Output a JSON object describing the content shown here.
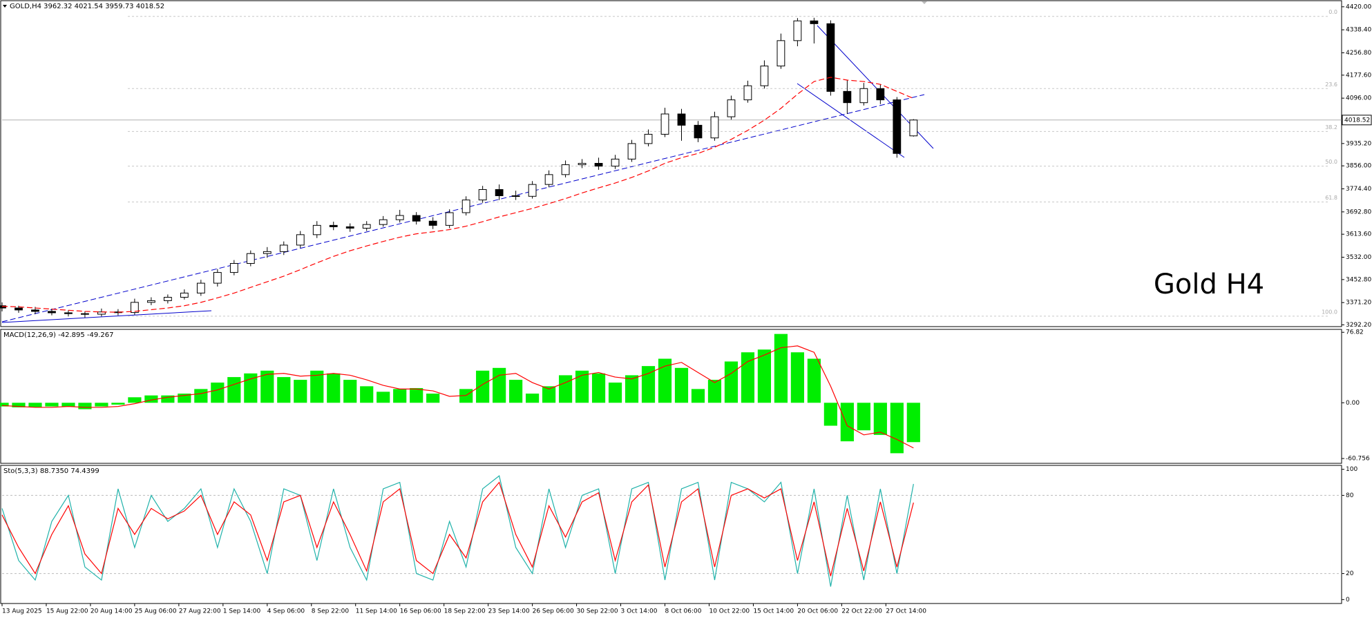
{
  "chart_data": [
    {
      "type": "candlestick",
      "title": "GOLD,H4  3962.32 4021.54 3959.73 4018.52",
      "annotation": "Gold H4",
      "x": [
        0,
        6,
        12,
        18,
        24,
        30,
        36,
        42,
        48,
        54,
        60,
        66,
        72,
        78,
        84,
        90,
        96,
        102,
        108,
        114,
        120,
        126,
        132,
        138,
        144,
        150,
        156,
        162,
        168,
        174,
        180,
        186,
        192,
        198,
        204,
        210,
        216,
        222,
        228,
        234,
        240,
        246,
        252,
        258,
        264,
        270,
        276,
        282,
        288,
        294,
        300,
        306,
        312,
        318,
        324,
        330
      ],
      "candles": {
        "open": [
          3360,
          3352,
          3345,
          3340,
          3335,
          3332,
          3330,
          3338,
          3336,
          3372,
          3378,
          3390,
          3405,
          3440,
          3478,
          3510,
          3545,
          3552,
          3575,
          3612,
          3645,
          3640,
          3635,
          3648,
          3665,
          3680,
          3660,
          3645,
          3690,
          3735,
          3772,
          3750,
          3748,
          3790,
          3825,
          3860,
          3865,
          3855,
          3880,
          3935,
          3968,
          4040,
          4000,
          3955,
          4030,
          4090,
          4140,
          4210,
          4300,
          4370,
          4360,
          4120,
          4080,
          4130,
          4090,
          3962.32
        ],
        "high": [
          3372,
          3360,
          3356,
          3350,
          3344,
          3340,
          3350,
          3348,
          3385,
          3390,
          3400,
          3418,
          3452,
          3490,
          3522,
          3556,
          3568,
          3588,
          3625,
          3660,
          3658,
          3652,
          3660,
          3678,
          3700,
          3692,
          3674,
          3702,
          3748,
          3785,
          3790,
          3768,
          3802,
          3840,
          3875,
          3880,
          3885,
          3895,
          3948,
          3985,
          4062,
          4058,
          4015,
          4048,
          4105,
          4158,
          4230,
          4325,
          4380,
          4381,
          4372,
          4160,
          4150,
          4145,
          4100,
          4021.54
        ],
        "low": [
          3340,
          3335,
          3330,
          3326,
          3322,
          3318,
          3322,
          3326,
          3328,
          3362,
          3368,
          3382,
          3395,
          3428,
          3468,
          3500,
          3530,
          3540,
          3565,
          3600,
          3628,
          3622,
          3625,
          3640,
          3655,
          3648,
          3632,
          3635,
          3680,
          3725,
          3735,
          3735,
          3740,
          3780,
          3815,
          3848,
          3842,
          3845,
          3870,
          3925,
          3958,
          3945,
          3940,
          3945,
          4020,
          4080,
          4130,
          4200,
          4280,
          4290,
          4105,
          4040,
          4070,
          4075,
          3885,
          3959.73
        ],
        "close": [
          3352,
          3345,
          3340,
          3335,
          3332,
          3330,
          3338,
          3336,
          3372,
          3378,
          3390,
          3405,
          3440,
          3478,
          3510,
          3545,
          3552,
          3575,
          3612,
          3645,
          3640,
          3635,
          3648,
          3665,
          3680,
          3660,
          3645,
          3690,
          3735,
          3772,
          3750,
          3748,
          3790,
          3825,
          3860,
          3865,
          3855,
          3880,
          3935,
          3968,
          4040,
          4000,
          3955,
          4030,
          4090,
          4140,
          4210,
          4300,
          4370,
          4360,
          4120,
          4080,
          4130,
          4090,
          3900,
          4018.52
        ]
      },
      "up_color": "#ffffff",
      "down_color": "#000000",
      "ma": {
        "color": "#ff0000",
        "values": [
          3358,
          3356,
          3352,
          3348,
          3344,
          3340,
          3338,
          3337,
          3340,
          3346,
          3352,
          3360,
          3372,
          3388,
          3405,
          3425,
          3445,
          3465,
          3488,
          3512,
          3535,
          3555,
          3572,
          3588,
          3603,
          3615,
          3622,
          3630,
          3642,
          3658,
          3675,
          3690,
          3705,
          3722,
          3740,
          3760,
          3778,
          3795,
          3815,
          3838,
          3865,
          3885,
          3900,
          3922,
          3950,
          3982,
          4018,
          4060,
          4110,
          4155,
          4170,
          4160,
          4155,
          4145,
          4120,
          4095
        ]
      },
      "xlim": [
        0,
        485
      ],
      "ylim": [
        3286,
        4441.6
      ],
      "yticks": [
        {
          "value": 4420,
          "label": "4420.00"
        },
        {
          "value": 4338.4,
          "label": "4338.40"
        },
        {
          "value": 4256.8,
          "label": "4256.80"
        },
        {
          "value": 4177.6,
          "label": "4177.60"
        },
        {
          "value": 4096,
          "label": "4096.00"
        },
        {
          "value": 3935.2,
          "label": "3935.20"
        },
        {
          "value": 3856,
          "label": "3856.00"
        },
        {
          "value": 3774.4,
          "label": "3774.40"
        },
        {
          "value": 3692.8,
          "label": "3692.80"
        },
        {
          "value": 3613.6,
          "label": "3613.60"
        },
        {
          "value": 3532,
          "label": "3532.00"
        },
        {
          "value": 3452.8,
          "label": "3452.80"
        },
        {
          "value": 3371.2,
          "label": "3371.20"
        },
        {
          "value": 3292.2,
          "label": "3292.20"
        }
      ],
      "last_price": {
        "value": 4018.52,
        "label": "4018.52"
      },
      "fib_levels": [
        {
          "value": 4386,
          "label": "0.0"
        },
        {
          "value": 4130,
          "label": "23.6"
        },
        {
          "value": 3978,
          "label": "38.2"
        },
        {
          "value": 3855,
          "label": "50.0"
        },
        {
          "value": 3728,
          "label": "61.8"
        },
        {
          "value": 3323,
          "label": "100.0"
        }
      ],
      "xticks": [
        {
          "value": 0,
          "label": "13 Aug 2025"
        },
        {
          "value": 16,
          "label": "15 Aug 22:00"
        },
        {
          "value": 32,
          "label": "20 Aug 14:00"
        },
        {
          "value": 48,
          "label": "25 Aug 06:00"
        },
        {
          "value": 64,
          "label": "27 Aug 22:00"
        },
        {
          "value": 80,
          "label": "1 Sep 14:00"
        },
        {
          "value": 96,
          "label": "4 Sep 06:00"
        },
        {
          "value": 112,
          "label": "8 Sep 22:00"
        },
        {
          "value": 128,
          "label": "11 Sep 14:00"
        },
        {
          "value": 144,
          "label": "16 Sep 06:00"
        },
        {
          "value": 160,
          "label": "18 Sep 22:00"
        },
        {
          "value": 176,
          "label": "23 Sep 14:00"
        },
        {
          "value": 192,
          "label": "26 Sep 06:00"
        },
        {
          "value": 208,
          "label": "30 Sep 22:00"
        },
        {
          "value": 224,
          "label": "3 Oct 14:00"
        },
        {
          "value": 240,
          "label": "8 Oct 06:00"
        },
        {
          "value": 256,
          "label": "10 Oct 22:00"
        },
        {
          "value": 272,
          "label": "15 Oct 14:00"
        },
        {
          "value": 288,
          "label": "20 Oct 06:00"
        },
        {
          "value": 304,
          "label": "22 Oct 22:00"
        },
        {
          "value": 320,
          "label": "27 Oct 14:00"
        }
      ]
    },
    {
      "type": "macd",
      "title": "MACD(12,26,9) -42.895 -49.267",
      "color": "#00ee00",
      "values": [
        -4,
        -5,
        -5,
        -4,
        -4,
        -7,
        -4,
        -2,
        6,
        8,
        8,
        10,
        15,
        22,
        28,
        32,
        35,
        28,
        25,
        35,
        32,
        25,
        18,
        12,
        15,
        16,
        10,
        0,
        15,
        35,
        38,
        25,
        10,
        18,
        30,
        35,
        32,
        22,
        30,
        40,
        48,
        38,
        15,
        25,
        45,
        55,
        58,
        75,
        55,
        48,
        -25,
        -42,
        -30,
        -35,
        -55,
        -42.895
      ],
      "signal": {
        "color": "#ff0000",
        "values": [
          -3,
          -4,
          -5,
          -5,
          -4,
          -5,
          -5,
          -4,
          -1,
          3,
          6,
          8,
          10,
          14,
          20,
          26,
          31,
          32,
          29,
          30,
          32,
          30,
          25,
          19,
          15,
          15,
          13,
          7,
          8,
          20,
          30,
          32,
          22,
          15,
          22,
          30,
          33,
          28,
          26,
          32,
          40,
          44,
          33,
          22,
          32,
          45,
          52,
          60,
          62,
          55,
          18,
          -25,
          -35,
          -32,
          -40,
          -49.267
        ]
      },
      "ylim": [
        -66,
        80
      ],
      "yticks": [
        76.82,
        {
          "value": 0,
          "label": "0.00"
        },
        -60.756
      ]
    },
    {
      "type": "line",
      "title": "Sto(5,3,3) 88.7350 74.4399",
      "series": [
        {
          "color": "#20b2aa",
          "values": [
            70,
            30,
            15,
            60,
            80,
            25,
            15,
            85,
            40,
            80,
            60,
            70,
            85,
            40,
            85,
            60,
            20,
            85,
            80,
            30,
            85,
            40,
            15,
            85,
            90,
            20,
            15,
            60,
            25,
            85,
            95,
            40,
            20,
            85,
            40,
            80,
            85,
            20,
            85,
            90,
            15,
            85,
            90,
            15,
            90,
            85,
            75,
            90,
            20,
            85,
            10,
            80,
            15,
            85,
            20,
            88.735
          ]
        },
        {
          "color": "#ff0000",
          "values": [
            65,
            40,
            20,
            50,
            72,
            35,
            20,
            70,
            50,
            70,
            62,
            68,
            80,
            50,
            75,
            65,
            30,
            75,
            80,
            40,
            75,
            50,
            22,
            75,
            85,
            30,
            20,
            50,
            32,
            75,
            90,
            50,
            25,
            72,
            48,
            75,
            82,
            30,
            75,
            88,
            25,
            75,
            85,
            25,
            80,
            85,
            78,
            85,
            30,
            75,
            18,
            70,
            22,
            75,
            25,
            74.4399
          ]
        }
      ],
      "ylim": [
        -3,
        103
      ],
      "yticks": [
        100,
        80,
        20,
        0
      ],
      "grid_levels": [
        80,
        20
      ]
    }
  ]
}
